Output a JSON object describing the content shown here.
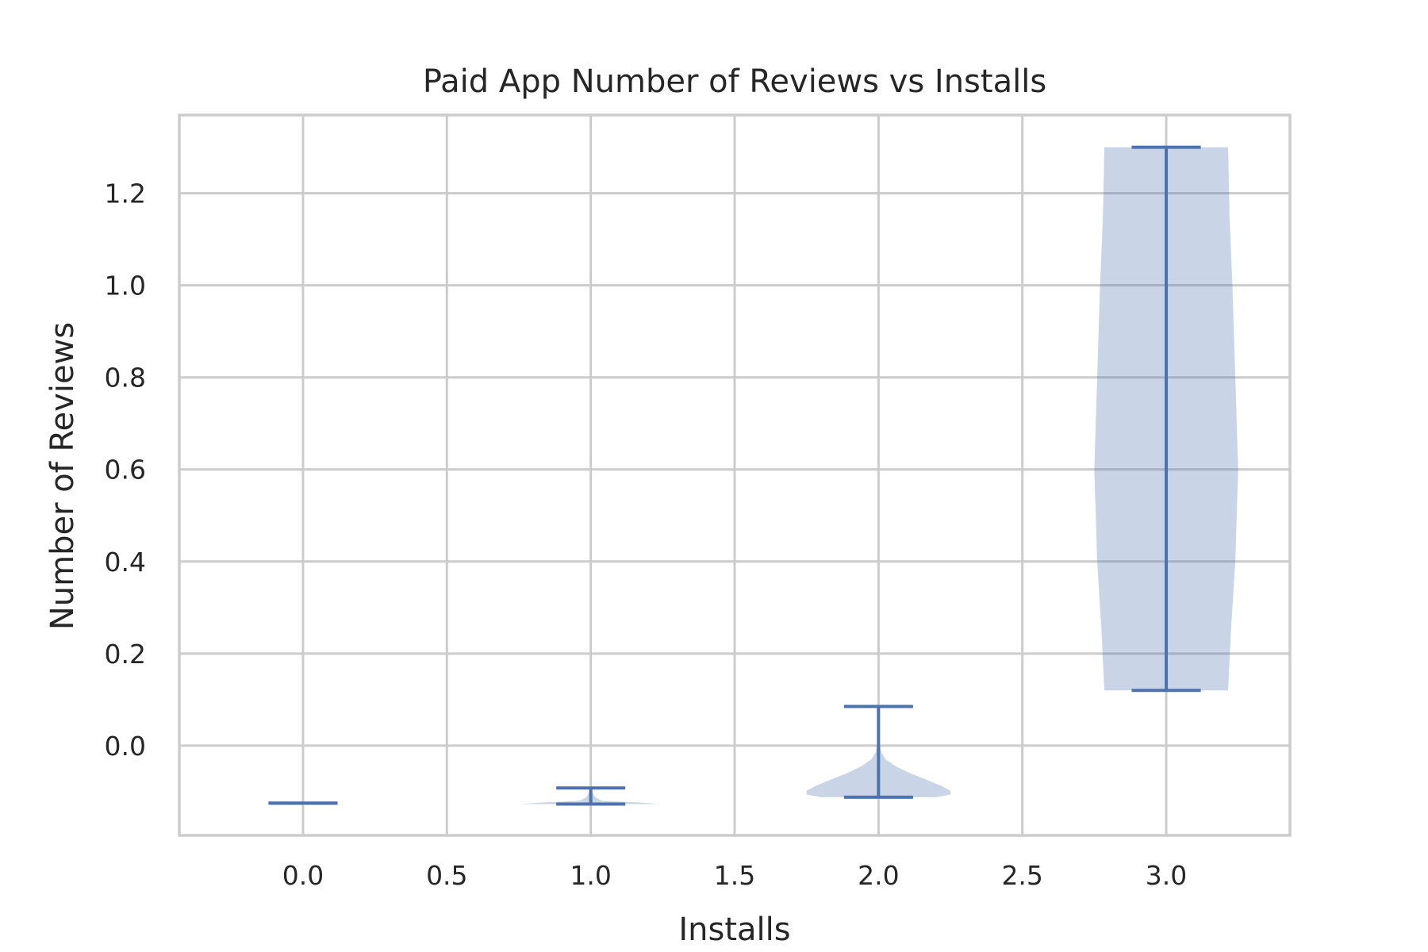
{
  "chart_data": {
    "type": "violin",
    "title": "Paid App Number of Reviews vs Installs",
    "xlabel": "Installs",
    "ylabel": "Number of Reviews",
    "xlim": [
      -0.43,
      3.43
    ],
    "ylim": [
      -0.195,
      1.37
    ],
    "x_ticks": [
      "0.0",
      "0.5",
      "1.0",
      "1.5",
      "2.0",
      "2.5",
      "3.0"
    ],
    "y_ticks": [
      "0.0",
      "0.2",
      "0.4",
      "0.6",
      "0.8",
      "1.0",
      "1.2"
    ],
    "grid": true,
    "colors": {
      "violin": "#4c72b0",
      "grid": "#cccccc",
      "text": "#262626"
    },
    "violins": [
      {
        "position": 0,
        "min": -0.125,
        "max": -0.125,
        "density": [
          [
            -0.125,
            0.0
          ]
        ]
      },
      {
        "position": 1,
        "min": -0.127,
        "max": -0.092,
        "density": [
          [
            -0.127,
            0.24
          ],
          [
            -0.124,
            0.18
          ],
          [
            -0.12,
            0.04
          ],
          [
            -0.112,
            0.015
          ],
          [
            -0.1,
            0.004
          ],
          [
            -0.092,
            0.0
          ]
        ]
      },
      {
        "position": 2,
        "min": -0.112,
        "max": 0.085,
        "density": [
          [
            -0.112,
            0.2
          ],
          [
            -0.106,
            0.25
          ],
          [
            -0.098,
            0.25
          ],
          [
            -0.088,
            0.22
          ],
          [
            -0.075,
            0.17
          ],
          [
            -0.06,
            0.11
          ],
          [
            -0.045,
            0.06
          ],
          [
            -0.03,
            0.025
          ],
          [
            -0.015,
            0.01
          ],
          [
            0.0,
            0.005
          ],
          [
            0.03,
            0.002
          ],
          [
            0.085,
            0.0
          ]
        ]
      },
      {
        "position": 3,
        "min": 0.12,
        "max": 1.3,
        "density": [
          [
            0.12,
            0.215
          ],
          [
            0.25,
            0.225
          ],
          [
            0.4,
            0.24
          ],
          [
            0.6,
            0.25
          ],
          [
            0.8,
            0.24
          ],
          [
            1.0,
            0.23
          ],
          [
            1.15,
            0.22
          ],
          [
            1.3,
            0.215
          ]
        ]
      }
    ]
  }
}
